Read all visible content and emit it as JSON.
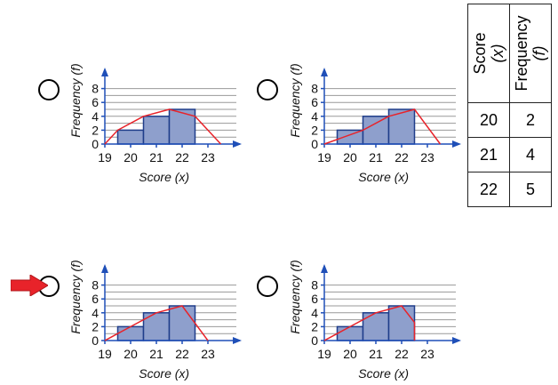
{
  "colors": {
    "bar_fill": "#8e9fcc",
    "bar_stroke": "#1f3d8a",
    "polygon": "#e8232a",
    "axis": "#1f4fb8",
    "grid": "#999999",
    "arrow": "#e8232a"
  },
  "table": {
    "score_header": "Score",
    "score_var": "(x)",
    "freq_header": "Frequency",
    "freq_var": "(f)",
    "rows": [
      {
        "score": "20",
        "freq": "2"
      },
      {
        "score": "21",
        "freq": "4"
      },
      {
        "score": "22",
        "freq": "5"
      }
    ]
  },
  "pointer_icon": "red-arrow-icon",
  "chart_data": [
    {
      "type": "bar",
      "option": "top-left",
      "xlabel": "Score (x)",
      "ylabel": "Frequency (f)",
      "x_ticks": [
        "19",
        "20",
        "21",
        "22",
        "23"
      ],
      "y_ticks": [
        "0",
        "2",
        "4",
        "6",
        "8"
      ],
      "xlim": [
        19,
        24
      ],
      "ylim": [
        0,
        9
      ],
      "grid": true,
      "bars": [
        {
          "x": 20,
          "value": 2
        },
        {
          "x": 21,
          "value": 4
        },
        {
          "x": 22,
          "value": 5
        }
      ],
      "frequency_polygon": [
        [
          19,
          0
        ],
        [
          19.5,
          2
        ],
        [
          20.5,
          4
        ],
        [
          21.5,
          5
        ],
        [
          22.5,
          4
        ],
        [
          23.5,
          0
        ]
      ]
    },
    {
      "type": "bar",
      "option": "top-right",
      "xlabel": "Score (x)",
      "ylabel": "Frequency (f)",
      "x_ticks": [
        "19",
        "20",
        "21",
        "22",
        "23"
      ],
      "y_ticks": [
        "0",
        "2",
        "4",
        "6",
        "8"
      ],
      "xlim": [
        19,
        24
      ],
      "ylim": [
        0,
        9
      ],
      "grid": true,
      "bars": [
        {
          "x": 20,
          "value": 2
        },
        {
          "x": 21,
          "value": 4
        },
        {
          "x": 22,
          "value": 5
        }
      ],
      "frequency_polygon": [
        [
          19,
          0
        ],
        [
          20.5,
          2
        ],
        [
          21.5,
          4
        ],
        [
          22.5,
          5
        ],
        [
          23.5,
          0
        ]
      ]
    },
    {
      "type": "bar",
      "option": "bottom-left",
      "xlabel": "Score (x)",
      "ylabel": "Frequency (f)",
      "x_ticks": [
        "19",
        "20",
        "21",
        "22",
        "23"
      ],
      "y_ticks": [
        "0",
        "2",
        "4",
        "6",
        "8"
      ],
      "xlim": [
        19,
        24
      ],
      "ylim": [
        0,
        9
      ],
      "grid": true,
      "bars": [
        {
          "x": 20,
          "value": 2
        },
        {
          "x": 21,
          "value": 4
        },
        {
          "x": 22,
          "value": 5
        }
      ],
      "frequency_polygon": [
        [
          19,
          0
        ],
        [
          20,
          2
        ],
        [
          21,
          4
        ],
        [
          22,
          5
        ],
        [
          23,
          0
        ]
      ]
    },
    {
      "type": "bar",
      "option": "bottom-right",
      "xlabel": "Score (x)",
      "ylabel": "Frequency (f)",
      "x_ticks": [
        "19",
        "20",
        "21",
        "22",
        "23"
      ],
      "y_ticks": [
        "0",
        "2",
        "4",
        "6",
        "8"
      ],
      "xlim": [
        19,
        24
      ],
      "ylim": [
        0,
        9
      ],
      "grid": true,
      "bars": [
        {
          "x": 20,
          "value": 2
        },
        {
          "x": 21,
          "value": 4
        },
        {
          "x": 22,
          "value": 5
        }
      ],
      "frequency_polygon": [
        [
          19,
          0
        ],
        [
          20,
          2
        ],
        [
          21,
          4
        ],
        [
          22,
          5
        ],
        [
          22.5,
          2.6
        ],
        [
          22.5,
          0
        ]
      ]
    }
  ]
}
